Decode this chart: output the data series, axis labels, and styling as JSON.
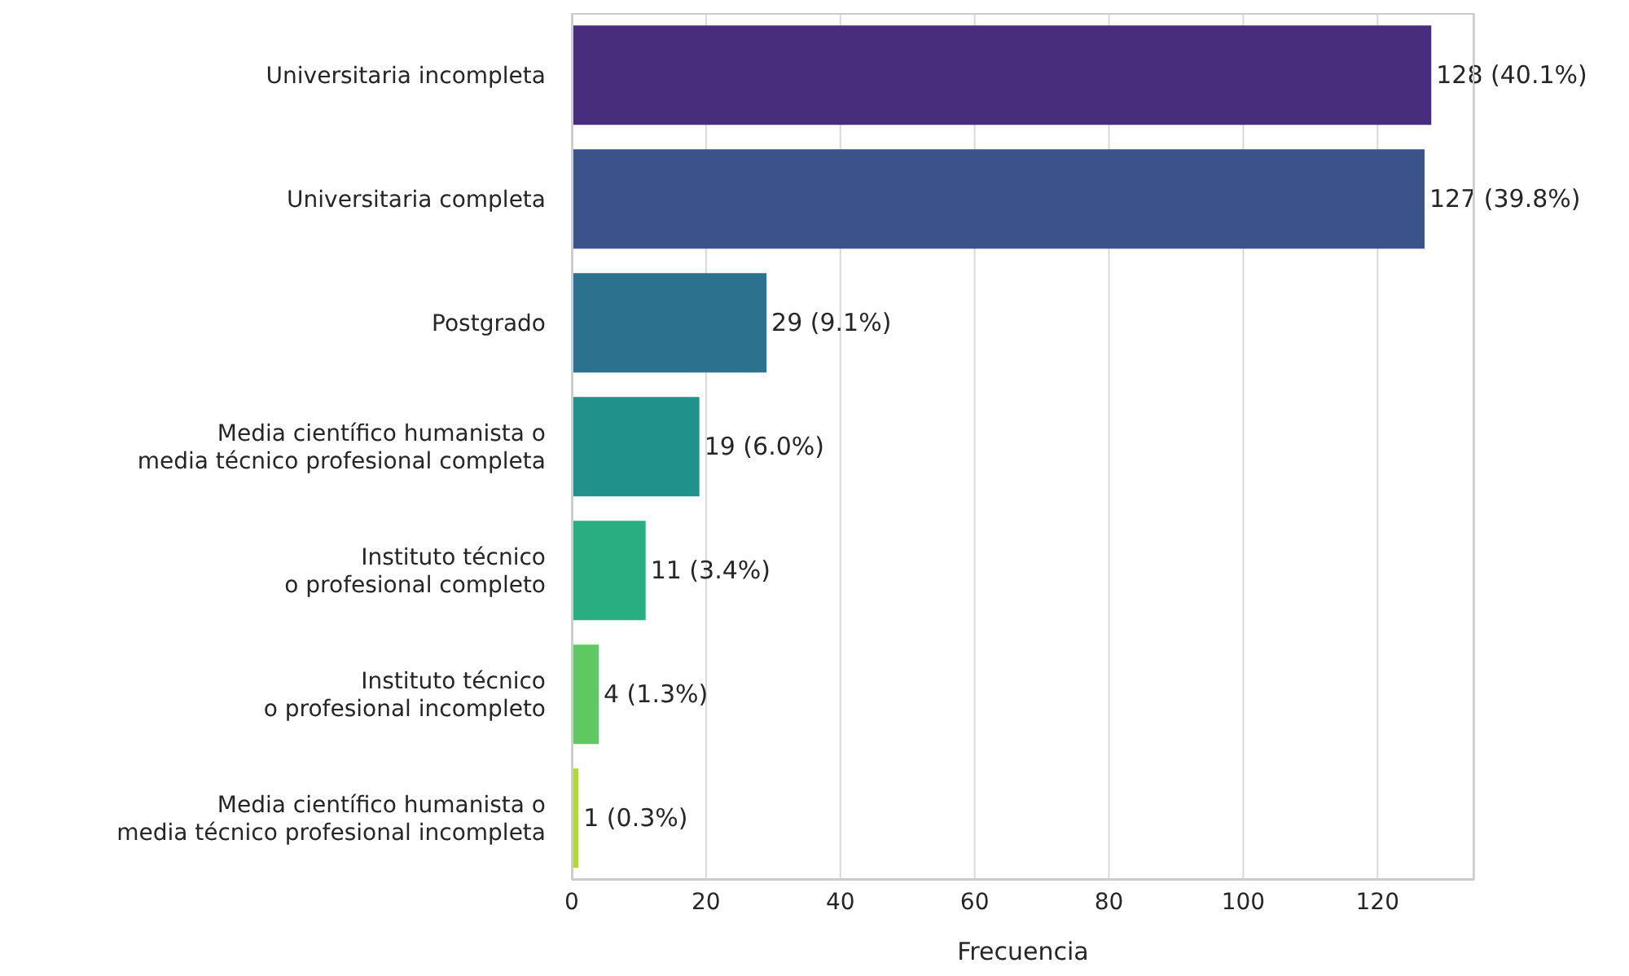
{
  "chart_data": {
    "type": "bar",
    "orientation": "horizontal",
    "xlabel": "Frecuencia",
    "categories": [
      "Universitaria incompleta",
      "Universitaria completa",
      "Postgrado",
      "Media científico humanista o\nmedia técnico profesional completa",
      "Instituto técnico\no profesional completo",
      "Instituto técnico\no profesional incompleto",
      "Media científico humanista o\nmedia técnico profesional incompleta"
    ],
    "values": [
      128,
      127,
      29,
      19,
      11,
      4,
      1
    ],
    "colors": [
      "#472d7b",
      "#3b528b",
      "#2c728e",
      "#21918c",
      "#28ae80",
      "#5ec962",
      "#addc30"
    ],
    "value_labels": [
      "128 (40.1%)",
      "127 (39.8%)",
      "29 (9.1%)",
      "19 (6.0%)",
      "11 (3.4%)",
      "4 (1.3%)",
      "1 (0.3%)"
    ],
    "xlim": [
      0,
      134.4
    ],
    "xticks": [
      0,
      20,
      40,
      60,
      80,
      100,
      120
    ],
    "grid": "x",
    "legend": false
  }
}
